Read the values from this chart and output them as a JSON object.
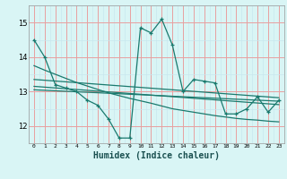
{
  "xlabel": "Humidex (Indice chaleur)",
  "bg_color": "#d9f5f5",
  "grid_color_major": "#e8a0a0",
  "grid_color_minor": "#c8e8ee",
  "line_color": "#1a7a6e",
  "xlim": [
    -0.5,
    23.5
  ],
  "ylim": [
    11.5,
    15.4
  ],
  "xticks": [
    0,
    1,
    2,
    3,
    4,
    5,
    6,
    7,
    8,
    9,
    10,
    11,
    12,
    13,
    14,
    15,
    16,
    17,
    18,
    19,
    20,
    21,
    22,
    23
  ],
  "yticks": [
    12,
    13,
    14,
    15
  ],
  "series1_x": [
    0,
    1,
    2,
    3,
    4,
    5,
    6,
    7,
    8,
    9,
    10,
    11,
    12,
    13,
    14,
    15,
    16,
    17,
    18,
    19,
    20,
    21,
    22,
    23
  ],
  "series1_y": [
    14.5,
    14.0,
    13.2,
    13.1,
    13.0,
    12.75,
    12.6,
    12.2,
    11.65,
    11.65,
    14.85,
    14.7,
    15.1,
    14.35,
    13.0,
    13.35,
    13.3,
    13.25,
    12.35,
    12.35,
    12.5,
    12.85,
    12.4,
    12.75
  ],
  "series2_x": [
    0,
    1,
    2,
    3,
    4,
    5,
    6,
    7,
    8,
    9,
    10,
    11,
    12,
    13,
    14,
    15,
    16,
    17,
    18,
    19,
    20,
    21,
    22,
    23
  ],
  "series2_y": [
    13.75,
    13.62,
    13.5,
    13.38,
    13.26,
    13.16,
    13.06,
    12.96,
    12.88,
    12.8,
    12.73,
    12.66,
    12.58,
    12.5,
    12.45,
    12.4,
    12.35,
    12.3,
    12.26,
    12.22,
    12.19,
    12.17,
    12.14,
    12.12
  ],
  "series3_x": [
    0,
    23
  ],
  "series3_y": [
    13.35,
    12.82
  ],
  "series4_x": [
    0,
    23
  ],
  "series4_y": [
    13.15,
    12.62
  ],
  "series5_x": [
    0,
    23
  ],
  "series5_y": [
    13.05,
    12.72
  ]
}
